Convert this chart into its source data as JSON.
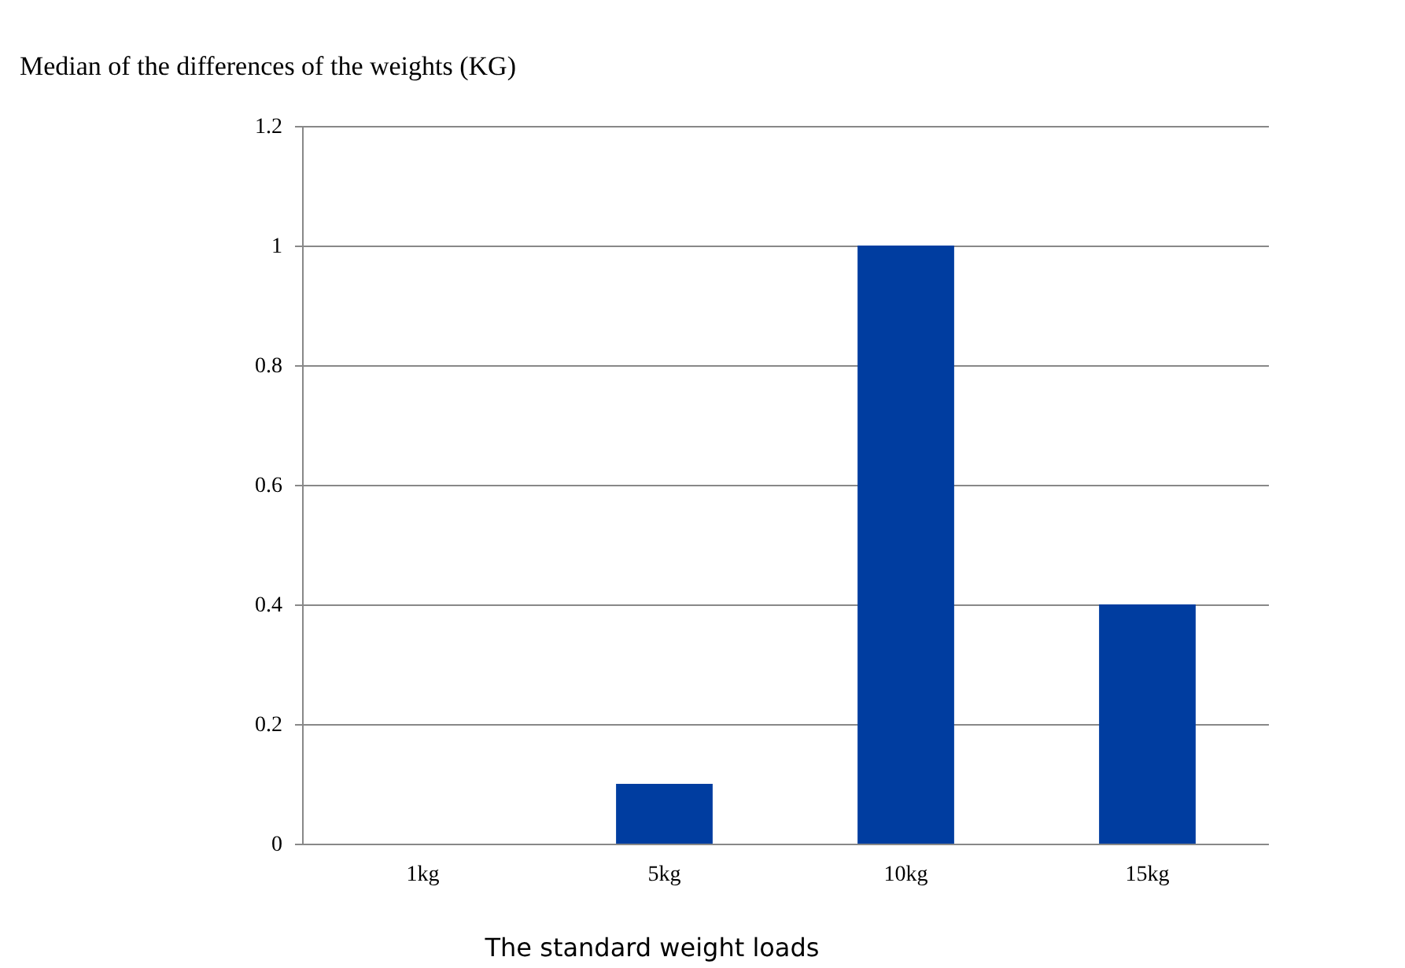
{
  "chart_data": {
    "type": "bar",
    "ylabel": "Median of the differences of the weights (KG)",
    "xlabel": "The standard weight loads",
    "categories": [
      "1kg",
      "5kg",
      "10kg",
      "15kg"
    ],
    "values": [
      0,
      0.1,
      1,
      0.4
    ],
    "color": "#003da0",
    "ylim": [
      0,
      1.2
    ],
    "yticks": [
      0,
      0.2,
      0.4,
      0.6,
      0.8,
      1,
      1.2
    ],
    "grid": "y"
  }
}
